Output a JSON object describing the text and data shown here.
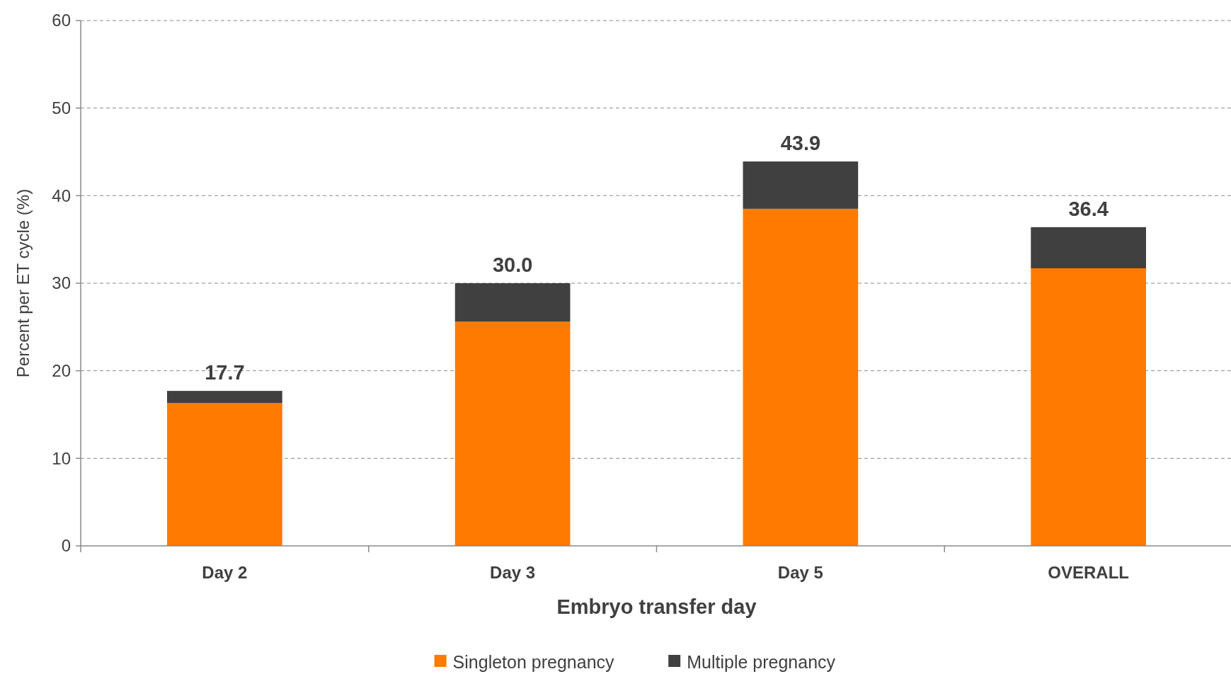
{
  "chart_data": {
    "type": "bar",
    "stacked": true,
    "xlabel": "Embryo transfer day",
    "ylabel": "Percent per ET cycle  (%)",
    "categories": [
      "Day 2",
      "Day 3",
      "Day 5",
      "OVERALL"
    ],
    "series": [
      {
        "name": "Singleton pregnancy",
        "color": "#ff7a00",
        "values": [
          16.3,
          25.6,
          38.5,
          31.7
        ]
      },
      {
        "name": "Multiple pregnancy",
        "color": "#404040",
        "values": [
          1.4,
          4.4,
          5.4,
          4.7
        ]
      }
    ],
    "totals": [
      "17.7",
      "30.0",
      "43.9",
      "36.4"
    ],
    "ylim": [
      0,
      60
    ],
    "yticks": [
      0,
      10,
      20,
      30,
      40,
      50,
      60
    ],
    "grid": "y",
    "legend": "bottom"
  }
}
